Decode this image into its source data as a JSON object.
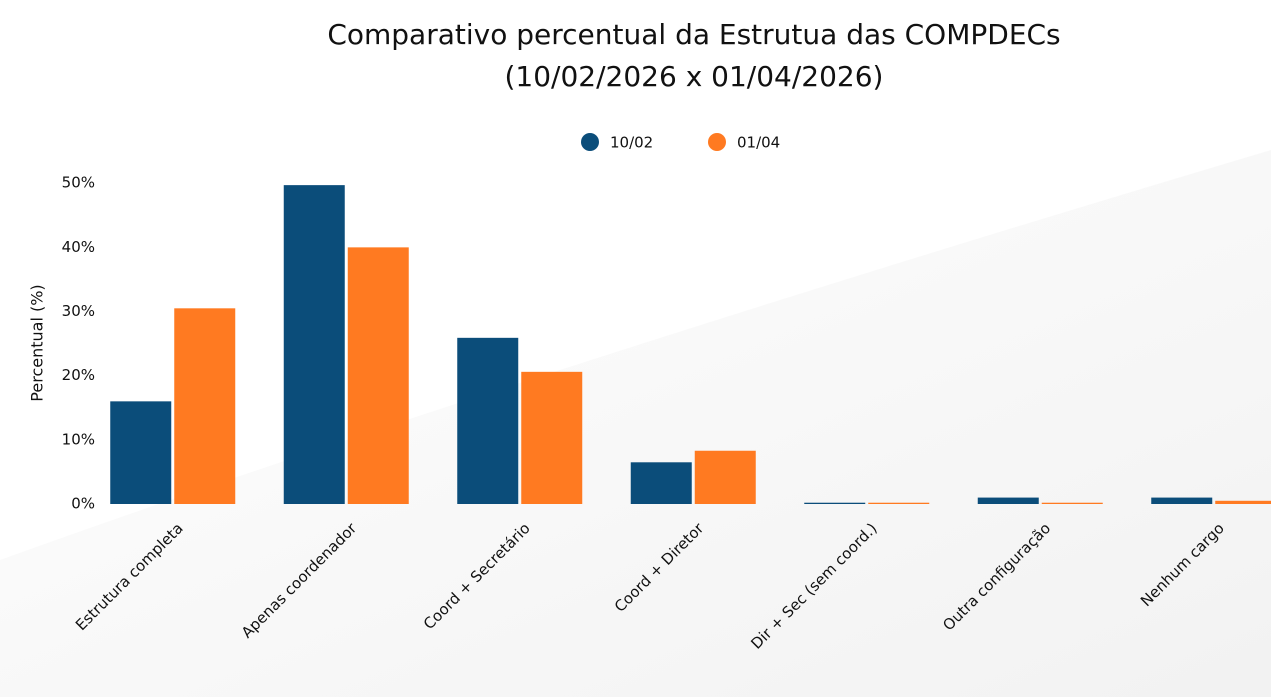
{
  "chart_data": {
    "type": "bar",
    "title": "Comparativo percentual da Estrutua das COMPDECs",
    "subtitle": "(10/02/2026 x 01/04/2026)",
    "y_label": "Percentual (%)",
    "categories": [
      "Estrutura completa",
      "Apenas coordenador",
      "Coord + Secretário",
      "Coord + Diretor",
      "Dir + Sec (sem coord.)",
      "Outra configuração",
      "Nenhum cargo"
    ],
    "series": [
      {
        "name": "10/02",
        "color": "#0b4d7a",
        "values": [
          16.0,
          49.7,
          25.9,
          6.5,
          0.2,
          1.0,
          1.0
        ]
      },
      {
        "name": "01/04",
        "color": "#ff7a21",
        "values": [
          30.5,
          40.0,
          20.6,
          8.3,
          0.2,
          0.2,
          0.5
        ]
      }
    ],
    "ylim": [
      0,
      50.5
    ],
    "yticks": [
      {
        "value": 0,
        "label": "0%"
      },
      {
        "value": 10,
        "label": "10%"
      },
      {
        "value": 20,
        "label": "20%"
      },
      {
        "value": 30,
        "label": "30%"
      },
      {
        "value": 40,
        "label": "40%"
      },
      {
        "value": 50,
        "label": "50%"
      }
    ],
    "legend": "top"
  }
}
